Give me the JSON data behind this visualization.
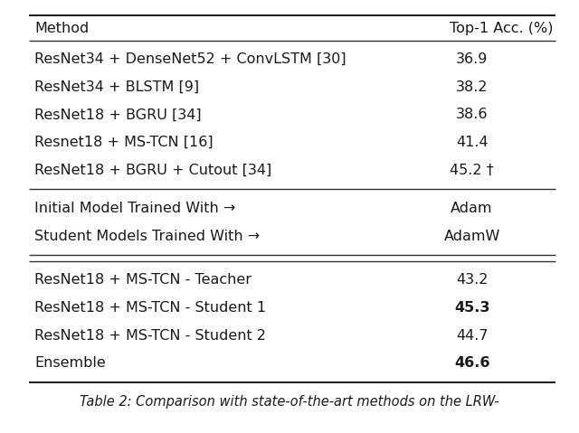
{
  "title": "Table 2: Comparison with state-of-the-art methods on the LRW-",
  "col_headers": [
    "Method",
    "Top-1 Acc. (%)"
  ],
  "section1_rows": [
    [
      "ResNet34 + DenseNet52 + ConvLSTM [30]",
      "36.9",
      false
    ],
    [
      "ResNet34 + BLSTM [9]",
      "38.2",
      false
    ],
    [
      "ResNet18 + BGRU [34]",
      "38.6",
      false
    ],
    [
      "Resnet18 + MS-TCN [16]",
      "41.4",
      false
    ],
    [
      "ResNet18 + BGRU + Cutout [34]",
      "45.2 †",
      false
    ]
  ],
  "section2_rows": [
    [
      "Initial Model Trained With →",
      "Adam",
      false
    ],
    [
      "Student Models Trained With →",
      "AdamW",
      false
    ]
  ],
  "section3_rows": [
    [
      "ResNet18 + MS-TCN - Teacher",
      "43.2",
      false
    ],
    [
      "ResNet18 + MS-TCN - Student 1",
      "45.3",
      true
    ],
    [
      "ResNet18 + MS-TCN - Student 2",
      "44.7",
      false
    ],
    [
      "Ensemble",
      "46.6",
      true
    ]
  ],
  "background_color": "#ffffff",
  "text_color": "#1a1a1a",
  "header_fontsize": 11.5,
  "body_fontsize": 11.5,
  "caption_fontsize": 10.5,
  "fig_width": 6.4,
  "fig_height": 4.79
}
